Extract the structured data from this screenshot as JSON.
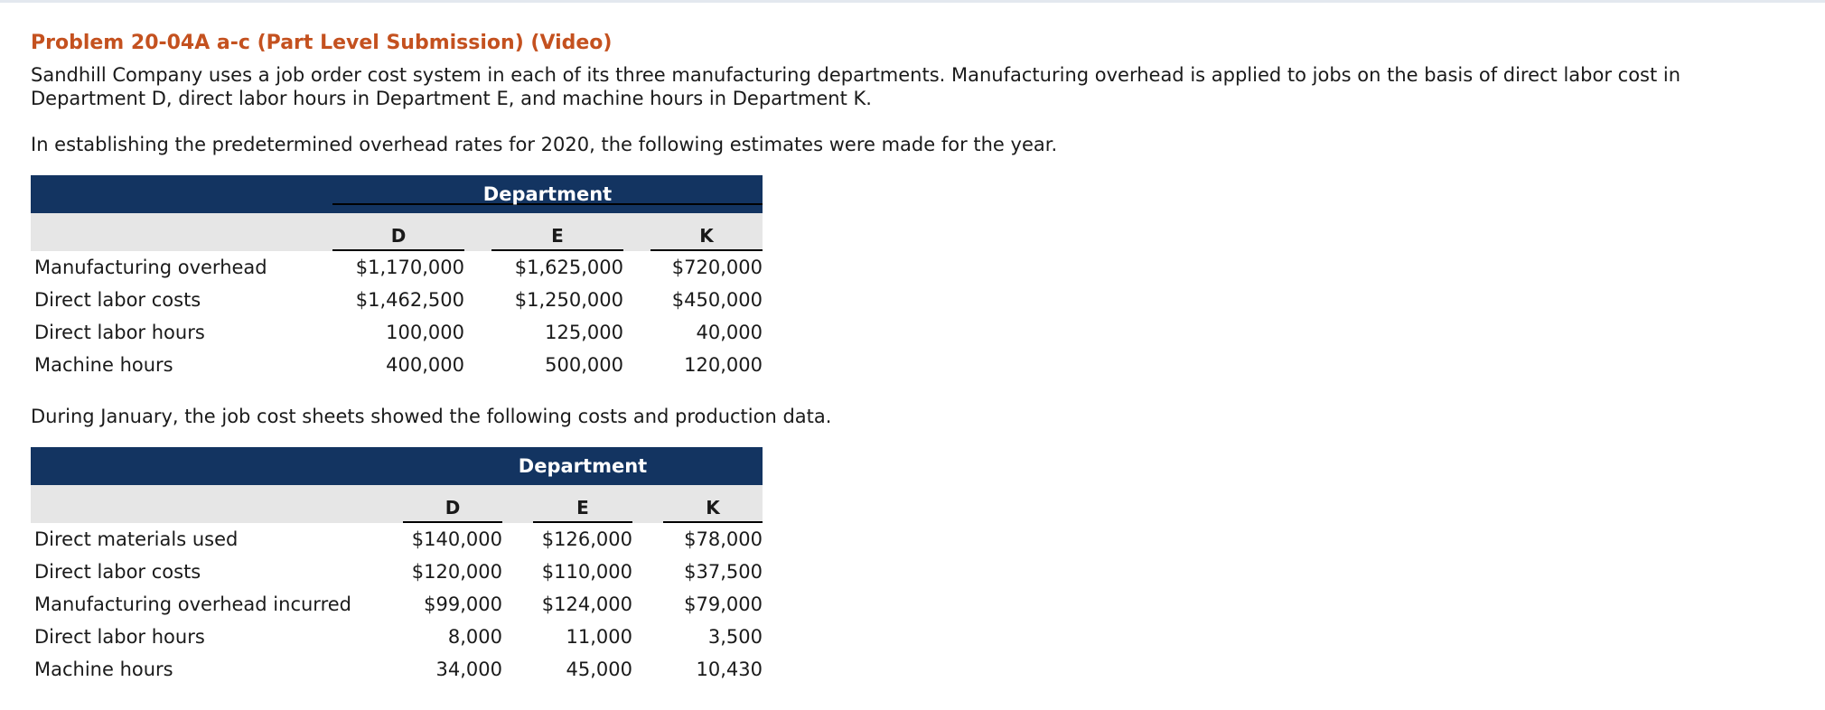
{
  "problem": {
    "title": "Problem 20-04A a-c (Part Level Submission) (Video)",
    "intro": "Sandhill Company uses a job order cost system in each of its three manufacturing departments. Manufacturing overhead is applied to jobs on the basis of direct labor cost in Department D, direct labor hours in Department E, and machine hours in Department K.",
    "estimates_intro": "In establishing the predetermined overhead rates for 2020, the following estimates were made for the year.",
    "january_intro": "During January, the job cost sheets showed the following costs and production data."
  },
  "estimates_table": {
    "group_header": "Department",
    "columns": [
      "D",
      "E",
      "K"
    ],
    "rows": [
      {
        "label": "Manufacturing overhead",
        "values": [
          "$1,170,000",
          "$1,625,000",
          "$720,000"
        ]
      },
      {
        "label": "Direct labor costs",
        "values": [
          "$1,462,500",
          "$1,250,000",
          "$450,000"
        ]
      },
      {
        "label": "Direct labor hours",
        "values": [
          "100,000",
          "125,000",
          "40,000"
        ]
      },
      {
        "label": "Machine hours",
        "values": [
          "400,000",
          "500,000",
          "120,000"
        ]
      }
    ]
  },
  "january_table": {
    "group_header": "Department",
    "columns": [
      "D",
      "E",
      "K"
    ],
    "rows": [
      {
        "label": "Direct materials used",
        "values": [
          "$140,000",
          "$126,000",
          "$78,000"
        ]
      },
      {
        "label": "Direct labor costs",
        "values": [
          "$120,000",
          "$110,000",
          "$37,500"
        ]
      },
      {
        "label": "Manufacturing overhead incurred",
        "values": [
          "$99,000",
          "$124,000",
          "$79,000"
        ]
      },
      {
        "label": "Direct labor hours",
        "values": [
          "8,000",
          "11,000",
          "3,500"
        ]
      },
      {
        "label": "Machine hours",
        "values": [
          "34,000",
          "45,000",
          "10,430"
        ]
      }
    ]
  }
}
